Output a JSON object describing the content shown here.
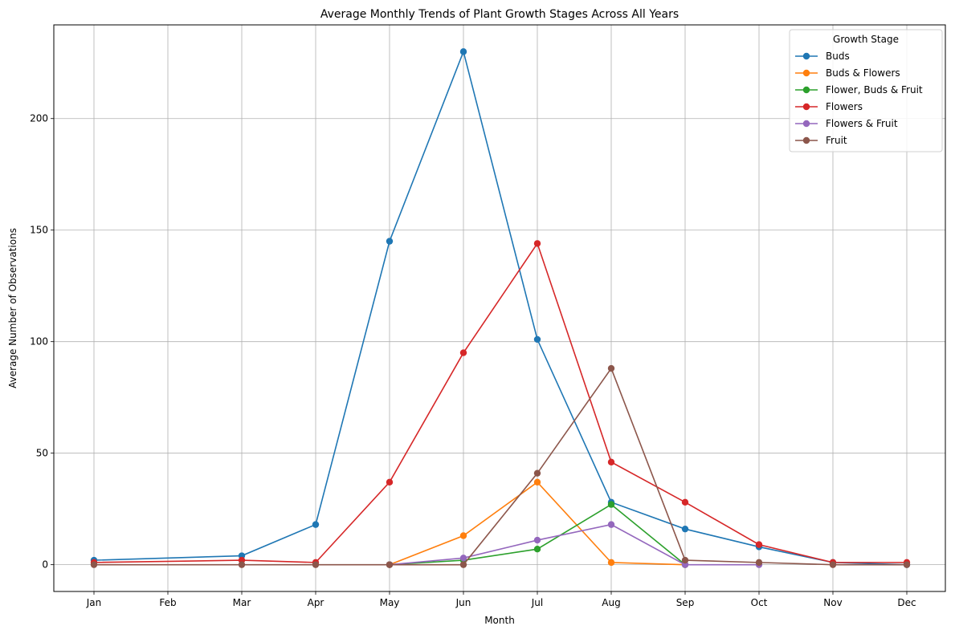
{
  "chart_data": {
    "type": "line",
    "title": "Average Monthly Trends of Plant Growth Stages Across All Years",
    "xlabel": "Month",
    "ylabel": "Average Number of Observations",
    "categories": [
      "Jan",
      "Feb",
      "Mar",
      "Apr",
      "May",
      "Jun",
      "Jul",
      "Aug",
      "Sep",
      "Oct",
      "Nov",
      "Dec"
    ],
    "ylim": [
      -12,
      242
    ],
    "yticks": [
      0,
      50,
      100,
      150,
      200
    ],
    "grid": true,
    "legend": {
      "title": "Growth Stage",
      "placement": "top-right"
    },
    "series": [
      {
        "name": "Buds",
        "color": "#1f77b4",
        "values": [
          2,
          null,
          4,
          18,
          145,
          230,
          101,
          28,
          16,
          8,
          1,
          0
        ]
      },
      {
        "name": "Buds & Flowers",
        "color": "#ff7f0e",
        "values": [
          null,
          null,
          null,
          null,
          0,
          13,
          37,
          1,
          0,
          null,
          null,
          null
        ]
      },
      {
        "name": "Flower, Buds & Fruit",
        "color": "#2ca02c",
        "values": [
          null,
          null,
          null,
          null,
          0,
          2,
          7,
          27,
          0,
          null,
          null,
          null
        ]
      },
      {
        "name": "Flowers",
        "color": "#d62728",
        "values": [
          1,
          null,
          2,
          1,
          37,
          95,
          144,
          46,
          28,
          9,
          1,
          1
        ]
      },
      {
        "name": "Flowers & Fruit",
        "color": "#9467bd",
        "values": [
          null,
          null,
          null,
          null,
          0,
          3,
          11,
          18,
          0,
          0,
          null,
          null
        ]
      },
      {
        "name": "Fruit",
        "color": "#8c564b",
        "values": [
          0,
          null,
          0,
          0,
          0,
          0,
          41,
          88,
          2,
          1,
          0,
          0
        ]
      }
    ]
  }
}
